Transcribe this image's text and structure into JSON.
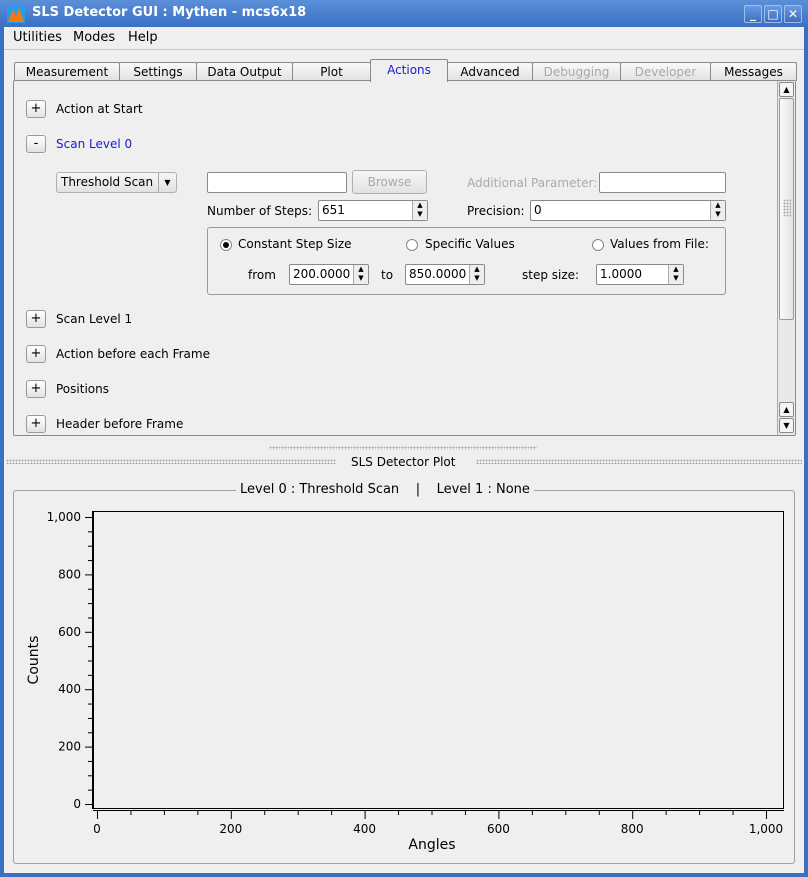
{
  "window": {
    "title": "SLS Detector GUI : Mythen - mcs6x18",
    "controls": [
      "minimize",
      "maximize",
      "close"
    ]
  },
  "menu": [
    "Utilities",
    "Modes",
    "Help"
  ],
  "tabs": [
    {
      "label": "Measurement",
      "state": "normal"
    },
    {
      "label": "Settings",
      "state": "normal"
    },
    {
      "label": "Data Output",
      "state": "normal"
    },
    {
      "label": "Plot",
      "state": "normal"
    },
    {
      "label": "Actions",
      "state": "active"
    },
    {
      "label": "Advanced",
      "state": "normal"
    },
    {
      "label": "Debugging",
      "state": "disabled"
    },
    {
      "label": "Developer",
      "state": "disabled"
    },
    {
      "label": "Messages",
      "state": "normal"
    }
  ],
  "actions": {
    "action_at_start": {
      "toggle": "+",
      "label": "Action at Start"
    },
    "scan_level_0": {
      "toggle": "-",
      "label": "Scan Level 0",
      "scan_type": "Threshold Scan",
      "file_field": "",
      "browse": "Browse",
      "additional_parameter_label": "Additional Parameter:",
      "additional_parameter": "",
      "steps_label": "Number of Steps:",
      "steps": "651",
      "precision_label": "Precision:",
      "precision": "0",
      "modes": [
        {
          "label": "Constant Step Size",
          "checked": true
        },
        {
          "label": "Specific Values",
          "checked": false
        },
        {
          "label": "Values from File:",
          "checked": false
        }
      ],
      "from_label": "from",
      "from": "200.0000",
      "to_label": "to",
      "to": "850.0000",
      "step_label": "step size:",
      "step": "1.0000"
    },
    "collapsed": [
      {
        "toggle": "+",
        "label": "Scan Level 1"
      },
      {
        "toggle": "+",
        "label": "Action before each Frame"
      },
      {
        "toggle": "+",
        "label": "Positions"
      },
      {
        "toggle": "+",
        "label": "Header before Frame"
      }
    ]
  },
  "plot_dock": {
    "title": "SLS Detector Plot"
  },
  "chart_data": {
    "type": "line",
    "title": "Level 0 : Threshold Scan    |    Level 1 : None",
    "xlabel": "Angles",
    "ylabel": "Counts",
    "xlim": [
      0,
      1000
    ],
    "ylim": [
      0,
      1000
    ],
    "xticks": [
      "0",
      "200",
      "400",
      "600",
      "800",
      "1,000"
    ],
    "yticks": [
      "0",
      "200",
      "400",
      "600",
      "800",
      "1,000"
    ],
    "series": [],
    "grid": false
  },
  "colors": {
    "accent": "#1a1ad8",
    "titlebar": "#3a70c4"
  }
}
